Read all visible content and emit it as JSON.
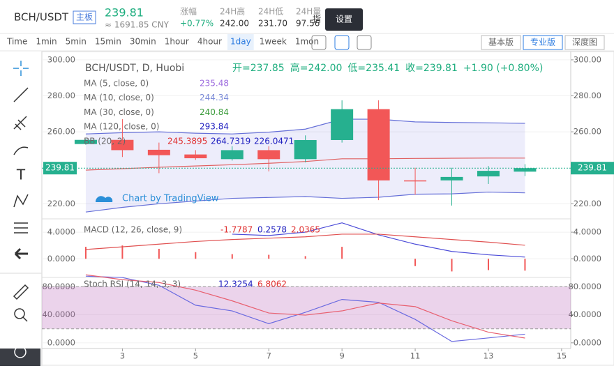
{
  "header": {
    "pair": "BCH/USDT",
    "board": "主板",
    "price": "239.81",
    "cny": "≈ 1691.85 CNY",
    "change_label": "涨幅",
    "change": "+0.77%",
    "high_label": "24H高",
    "high": "242.00",
    "low_label": "24H低",
    "low": "231.70",
    "vol_label": "24H量",
    "vol": "97.56",
    "tooltip": "设置",
    "tooltip_prefix": "指"
  },
  "toolbar": {
    "intervals": [
      "Time",
      "1min",
      "5min",
      "15min",
      "30min",
      "1hour",
      "4hour",
      "1day",
      "1week",
      "1mon"
    ],
    "active": "1day",
    "views": [
      "基本版",
      "专业版",
      "深度图"
    ],
    "active_view": "专业版"
  },
  "legend": {
    "title": "BCH/USDT, D, Huobi",
    "ohlc": [
      "开=237.85",
      "高=242.00",
      "低=235.41",
      "收=239.81",
      "+1.90 (+0.80%)"
    ],
    "ma": [
      {
        "label": "MA (5, close, 0)",
        "value": "235.48",
        "color": "#9c6ade"
      },
      {
        "label": "MA (10, close, 0)",
        "value": "244.34",
        "color": "#7b8bd8"
      },
      {
        "label": "MA (30, close, 0)",
        "value": "240.84",
        "color": "#3a9b3a"
      },
      {
        "label": "MA (120, close, 0)",
        "value": "293.84",
        "color": "#2020c0"
      }
    ],
    "bb": {
      "label": "BB (20, 2)",
      "values": [
        "245.3895",
        "264.7319",
        "226.0471"
      ]
    },
    "macd": {
      "label": "MACD (12, 26, close, 9)",
      "values": [
        "-1.7787",
        "0.2578",
        "2.0365"
      ]
    },
    "rsi": {
      "label": "Stoch RSI (14, 14, 3, 3)",
      "values": [
        "12.3254",
        "6.8062"
      ]
    },
    "watermark": "Chart by TradingView"
  },
  "chart_data": {
    "type": "candlestick",
    "x": [
      2,
      3,
      4,
      5,
      6,
      7,
      8,
      9,
      10,
      11,
      12,
      13,
      14
    ],
    "xlim": [
      0.8,
      15.25
    ],
    "xticks": [
      3,
      5,
      7,
      9,
      11,
      13,
      15
    ],
    "open": [
      253.2,
      255.5,
      250,
      247.4,
      244.8,
      249.8,
      244.8,
      255.4,
      272.6,
      233,
      233,
      235.2,
      237.85
    ],
    "high": [
      256,
      267,
      254,
      249.8,
      252,
      252,
      258,
      277.5,
      277.5,
      240,
      240,
      241,
      242
    ],
    "low": [
      252.8,
      246,
      237,
      244.4,
      244,
      238,
      243,
      254,
      222,
      225,
      219,
      231,
      235.41
    ],
    "close": [
      255.5,
      249.8,
      247,
      245.3,
      249.8,
      244.8,
      255.4,
      272.6,
      233,
      232.6,
      234.9,
      238.3,
      239.81
    ],
    "up_color": "#26b08f",
    "down_color": "#f25757",
    "ylim": [
      211.6,
      304.6
    ],
    "yticks": [
      {
        "value": 220,
        "label": "220.00"
      },
      {
        "value": 260,
        "label": "260.00"
      },
      {
        "value": 280,
        "label": "280.00"
      },
      {
        "value": 300,
        "label": "300.00"
      }
    ],
    "last_price": {
      "value": 239.81,
      "label": "239.81"
    },
    "bands": [
      {
        "name": "upper",
        "color": "#6670d8",
        "values": [
          258.8,
          259.5,
          260,
          259.2,
          258.8,
          259.8,
          261.5,
          267,
          267,
          265.5,
          265.2,
          265,
          264.73
        ]
      },
      {
        "name": "lower",
        "color": "#6670d8",
        "values": [
          215.4,
          218,
          220,
          221.5,
          223,
          223.5,
          224,
          223,
          223.6,
          225.3,
          225.5,
          226.5,
          226.05
        ]
      },
      {
        "name": "basis",
        "color": "#e06060",
        "values": [
          238.7,
          239.5,
          240.3,
          241,
          241.7,
          242.5,
          243.5,
          245,
          245,
          245.2,
          245.3,
          245.4,
          245.39
        ]
      }
    ],
    "macd": {
      "ylim": [
        -2.8,
        6
      ],
      "yticks": [
        {
          "value": 4,
          "label": "4.0000"
        },
        {
          "value": 0,
          "label": "0.0000"
        }
      ],
      "hist": [
        1.8,
        2.0,
        1.5,
        1.0,
        0.7,
        0.6,
        0.4,
        1.8,
        0,
        -1.1,
        -1.9,
        -1.7,
        -1.78
      ],
      "hist_color": "#f25757",
      "series": [
        {
          "name": "MACD",
          "color": "#4b4bd8",
          "values": [
            null,
            null,
            null,
            null,
            3.7,
            3.5,
            4.0,
            5.4,
            3.6,
            2.2,
            1.1,
            0.6,
            0.26
          ]
        },
        {
          "name": "Signal",
          "color": "#e05050",
          "values": [
            1.4,
            1.8,
            2.2,
            2.6,
            2.9,
            3.1,
            3.3,
            3.7,
            3.7,
            3.3,
            2.9,
            2.5,
            2.04
          ]
        }
      ]
    },
    "rsi": {
      "ylim": [
        -8.1,
        93.2
      ],
      "yticks": [
        {
          "value": 80,
          "label": "80.0000"
        },
        {
          "value": 40,
          "label": "40.0000"
        },
        {
          "value": 0,
          "label": "0.0000"
        }
      ],
      "band": [
        20,
        80
      ],
      "series": [
        {
          "name": "K",
          "color": "#6a6ae0",
          "values": [
            95,
            93,
            82,
            53.6,
            45.5,
            27.3,
            43.5,
            61.8,
            57.7,
            33.4,
            2,
            7,
            12.33
          ]
        },
        {
          "name": "D",
          "color": "#e86070",
          "values": [
            97,
            90,
            86,
            75,
            59.8,
            42.5,
            39.5,
            45.5,
            56.7,
            51.6,
            31.4,
            15.2,
            6.81
          ]
        }
      ]
    }
  }
}
